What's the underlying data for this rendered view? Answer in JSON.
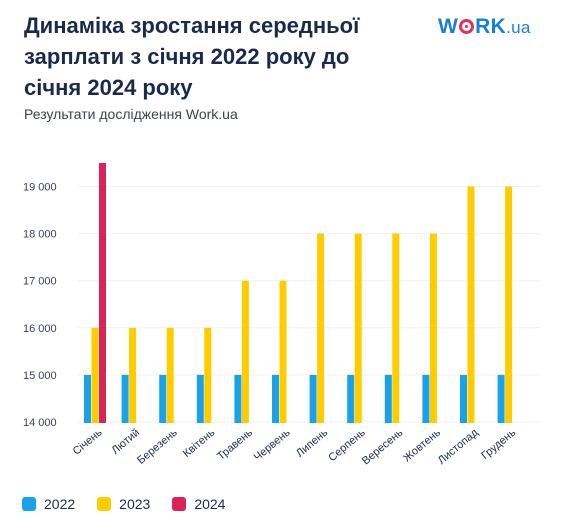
{
  "header": {
    "title": "Динаміка зростання середньої зарплати з січня 2022 року до січня 2024 року",
    "subtitle": "Результати дослідження Work.ua"
  },
  "logo": {
    "part1": "W",
    "part2": "RK",
    "part3": ".ua",
    "colors": {
      "text": "#1a7fd4",
      "accent": "#e0325b"
    }
  },
  "chart_data": {
    "type": "bar",
    "title": "Динаміка зростання середньої зарплати з січня 2022 року до січня 2024 року",
    "subtitle": "Результати дослідження Work.ua",
    "xlabel": "",
    "ylabel": "",
    "yticks": [
      14000,
      15000,
      16000,
      17000,
      18000,
      19000
    ],
    "ytick_labels": [
      "14 000",
      "15 000",
      "16 000",
      "17 000",
      "18 000",
      "19 000"
    ],
    "ylim": [
      14000,
      19500
    ],
    "grid": true,
    "legend_position": "bottom-left",
    "categories": [
      "Січень",
      "Лютий",
      "Березень",
      "Квітень",
      "Травень",
      "Червень",
      "Липень",
      "Серпень",
      "Вересень",
      "Жовтень",
      "Листопад",
      "Грудень"
    ],
    "series": [
      {
        "name": "2022",
        "color": "#1ba1e8",
        "values": [
          15000,
          15000,
          15000,
          15000,
          15000,
          15000,
          15000,
          15000,
          15000,
          15000,
          15000,
          15000
        ]
      },
      {
        "name": "2023",
        "color": "#ffcc00",
        "values": [
          16000,
          16000,
          16000,
          16000,
          17000,
          17000,
          18000,
          18000,
          18000,
          18000,
          19000,
          19000
        ]
      },
      {
        "name": "2024",
        "color": "#d9245a",
        "values": [
          19500,
          null,
          null,
          null,
          null,
          null,
          null,
          null,
          null,
          null,
          null,
          null
        ]
      }
    ]
  }
}
